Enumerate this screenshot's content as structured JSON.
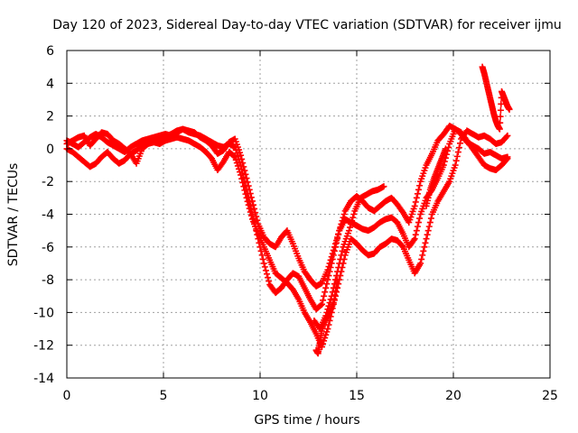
{
  "chart_data": {
    "type": "scatter",
    "title": "Day 120 of 2023, Sidereal Day-to-day VTEC variation (SDTVAR) for receiver ijmu",
    "xlabel": "GPS time / hours",
    "ylabel": "SDTVAR / TECUs",
    "xlim": [
      0,
      25
    ],
    "ylim": [
      -14,
      6
    ],
    "xticks": [
      0,
      5,
      10,
      15,
      20,
      25
    ],
    "yticks": [
      -14,
      -12,
      -10,
      -8,
      -6,
      -4,
      -2,
      0,
      2,
      4,
      6
    ],
    "grid": true,
    "marker": "+",
    "color": "#ff0000",
    "series": [
      {
        "x": [
          0.0,
          0.3,
          0.6,
          0.9,
          1.2,
          1.5,
          1.8,
          2.1,
          2.4,
          2.7,
          3.0,
          3.3,
          3.6,
          3.9,
          4.2,
          4.5,
          4.8,
          5.1,
          5.4,
          5.7,
          6.0,
          6.3,
          6.6,
          6.9,
          7.2,
          7.5,
          7.8,
          8.1,
          8.4,
          8.7,
          9.0,
          9.3,
          9.6,
          9.9,
          10.2,
          10.5,
          10.8,
          11.1,
          11.4,
          11.7,
          12.0,
          12.3,
          12.6,
          12.9,
          13.2,
          13.5,
          13.8,
          14.1,
          14.4,
          14.7,
          15.0,
          15.3,
          15.6,
          15.9,
          16.2,
          16.5,
          16.8,
          17.1,
          17.4,
          17.7,
          18.0,
          18.3,
          18.6,
          18.9,
          19.2,
          19.5,
          19.8,
          20.1,
          20.4,
          20.7,
          21.0,
          21.3,
          21.6,
          21.9,
          22.2,
          22.5,
          22.8
        ],
        "y": [
          0.3,
          0.5,
          0.7,
          0.8,
          0.2,
          0.6,
          1.0,
          0.9,
          0.5,
          0.3,
          0.0,
          -0.3,
          -0.1,
          0.2,
          0.4,
          0.5,
          0.6,
          0.7,
          0.9,
          1.1,
          1.2,
          1.0,
          0.9,
          0.8,
          0.6,
          0.4,
          0.2,
          0.1,
          0.3,
          0.1,
          -1.0,
          -2.5,
          -4.0,
          -5.5,
          -7.0,
          -8.3,
          -8.8,
          -8.5,
          -8.0,
          -7.6,
          -7.8,
          -8.5,
          -9.2,
          -9.8,
          -9.5,
          -8.0,
          -6.5,
          -5.0,
          -4.3,
          -4.5,
          -4.7,
          -4.9,
          -5.0,
          -4.8,
          -4.5,
          -4.3,
          -4.2,
          -4.5,
          -5.2,
          -6.0,
          -5.5,
          -4.0,
          -3.0,
          -2.5,
          -1.8,
          -1.0,
          0.3,
          1.2,
          1.0,
          0.5,
          0.0,
          -0.5,
          -1.0,
          -1.2,
          -1.3,
          -1.0,
          -0.6
        ]
      },
      {
        "x": [
          0.0,
          0.3,
          0.6,
          0.9,
          1.2,
          1.5,
          1.8,
          2.1,
          2.4,
          2.7,
          3.0,
          3.3,
          3.6,
          3.9,
          4.2,
          4.5,
          4.8,
          5.1,
          5.4,
          5.7,
          6.0,
          6.3,
          6.6,
          6.9,
          7.2,
          7.5,
          7.8,
          8.1,
          8.4,
          8.7,
          9.0,
          9.3,
          9.6,
          9.9,
          10.2,
          10.5,
          10.8,
          11.1,
          11.4,
          11.7,
          12.0,
          12.3,
          12.6,
          12.9,
          13.2,
          13.5,
          13.8,
          14.1,
          14.4,
          14.7,
          15.0,
          15.3,
          15.6,
          15.9,
          16.2,
          16.5,
          16.8,
          17.1,
          17.4,
          17.7,
          18.0,
          18.3,
          18.6,
          18.9,
          19.2,
          19.5,
          19.8,
          20.1,
          20.4,
          20.7,
          21.0,
          21.3,
          21.6,
          21.9,
          22.2,
          22.5,
          22.8
        ],
        "y": [
          0.0,
          -0.2,
          -0.5,
          -0.8,
          -1.1,
          -0.9,
          -0.5,
          -0.2,
          -0.6,
          -0.9,
          -0.7,
          -0.3,
          -0.9,
          0.0,
          0.3,
          0.4,
          0.3,
          0.5,
          0.6,
          0.7,
          0.6,
          0.5,
          0.3,
          0.1,
          -0.2,
          -0.6,
          -1.3,
          -0.8,
          -0.2,
          -0.5,
          -1.6,
          -3.0,
          -4.3,
          -5.2,
          -6.0,
          -6.8,
          -7.6,
          -7.9,
          -8.2,
          -8.6,
          -9.2,
          -10.0,
          -10.6,
          -11.3,
          -12.1,
          -11.0,
          -9.5,
          -8.0,
          -6.5,
          -5.5,
          -5.8,
          -6.2,
          -6.5,
          -6.4,
          -6.0,
          -5.8,
          -5.5,
          -5.6,
          -6.0,
          -6.8,
          -7.6,
          -7.0,
          -5.5,
          -4.0,
          -3.2,
          -2.6,
          -2.0,
          -1.0,
          0.6,
          1.1,
          0.9,
          0.7,
          0.8,
          0.6,
          0.3,
          0.4,
          0.8
        ]
      },
      {
        "x": [
          0.0,
          0.3,
          0.6,
          0.9,
          1.2,
          1.5,
          1.8,
          2.1,
          2.4,
          2.7,
          3.0,
          3.3,
          3.6,
          3.9,
          4.2,
          4.5,
          4.8,
          5.1,
          5.4,
          5.7,
          6.0,
          6.3,
          6.6,
          6.9,
          7.2,
          7.5,
          7.8,
          8.1,
          8.4,
          8.7,
          9.0,
          9.3,
          9.6,
          9.9,
          10.2,
          10.5,
          10.8,
          11.1,
          11.4,
          11.7,
          12.0,
          12.3,
          12.6,
          12.9,
          13.2,
          13.5,
          13.8,
          14.1,
          14.4,
          14.7,
          15.0,
          15.3,
          15.6,
          15.9,
          16.2,
          16.5,
          16.8,
          17.1,
          17.4,
          17.7,
          18.0,
          18.3,
          18.6,
          18.9,
          19.2,
          19.5,
          19.8,
          20.1,
          20.4,
          20.7,
          21.0,
          21.3,
          21.6,
          21.9,
          22.2,
          22.5,
          22.8
        ],
        "y": [
          0.5,
          0.3,
          0.1,
          0.4,
          0.7,
          0.9,
          0.7,
          0.4,
          0.2,
          0.0,
          -0.2,
          0.1,
          0.3,
          0.5,
          0.6,
          0.7,
          0.8,
          0.9,
          0.8,
          1.0,
          1.2,
          1.1,
          1.0,
          0.7,
          0.5,
          0.2,
          -0.3,
          -0.1,
          0.4,
          0.6,
          -0.4,
          -1.8,
          -3.2,
          -4.6,
          -5.4,
          -5.8,
          -6.0,
          -5.4,
          -5.0,
          -5.8,
          -6.7,
          -7.5,
          -8.0,
          -8.4,
          -8.2,
          -7.4,
          -6.2,
          -5.0,
          -3.8,
          -3.2,
          -2.9,
          -3.2,
          -3.6,
          -3.8,
          -3.5,
          -3.2,
          -3.0,
          -3.4,
          -3.9,
          -4.5,
          -3.5,
          -2.0,
          -1.0,
          -0.3,
          0.5,
          0.9,
          1.4,
          1.2,
          0.9,
          0.4,
          0.2,
          0.0,
          -0.3,
          -0.2,
          -0.4,
          -0.6,
          -0.5
        ]
      },
      {
        "x": [
          12.8,
          13.1,
          13.4,
          13.7,
          14.0,
          14.3,
          14.6,
          14.9,
          15.2,
          15.5,
          15.8,
          16.1,
          16.4
        ],
        "y": [
          -10.5,
          -11.0,
          -10.2,
          -9.0,
          -7.5,
          -6.0,
          -5.0,
          -3.8,
          -3.0,
          -2.8,
          -2.6,
          -2.5,
          -2.3
        ]
      },
      {
        "x": [
          12.9,
          13.0,
          13.1,
          13.2,
          13.4,
          13.6,
          13.8,
          14.0
        ],
        "y": [
          -12.3,
          -12.5,
          -11.8,
          -11.0,
          -10.4,
          -10.0,
          -9.4,
          -8.0
        ]
      },
      {
        "x": [
          21.5,
          21.6,
          21.7,
          21.8,
          21.9,
          22.0,
          22.1,
          22.2,
          22.3,
          22.4,
          22.5,
          22.6,
          22.7,
          22.8,
          22.9
        ],
        "y": [
          5.0,
          4.6,
          4.1,
          3.6,
          3.1,
          2.6,
          2.1,
          1.7,
          1.4,
          1.2,
          3.5,
          3.2,
          2.9,
          2.6,
          2.4
        ]
      },
      {
        "x": [
          18.6,
          18.8,
          19.0,
          19.2,
          19.4,
          19.6
        ],
        "y": [
          -3.5,
          -2.5,
          -1.8,
          -1.2,
          -0.6,
          0.0
        ]
      }
    ]
  }
}
